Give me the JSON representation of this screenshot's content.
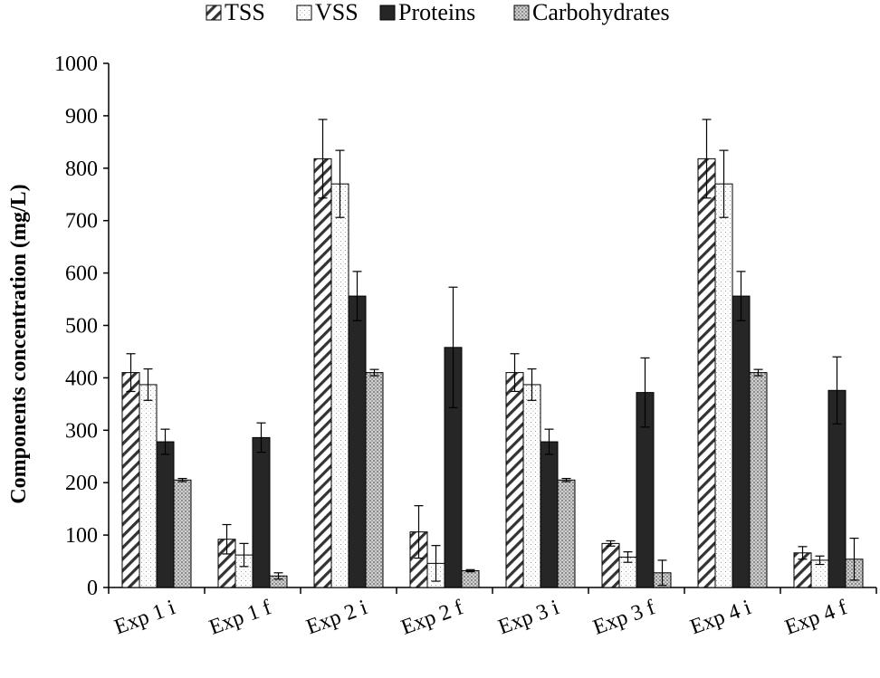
{
  "chart_data": {
    "type": "bar",
    "title": "",
    "xlabel": "",
    "ylabel": "Components concentration  (mg/L)",
    "ylim": [
      0,
      1000
    ],
    "yticks": [
      0,
      100,
      200,
      300,
      400,
      500,
      600,
      700,
      800,
      900,
      1000
    ],
    "grid": false,
    "legend_position": "top",
    "categories": [
      "Exp 1 i",
      "Exp 1 f",
      "Exp 2 i",
      "Exp 2 f",
      "Exp 3 i",
      "Exp 3 f",
      "Exp 4 i",
      "Exp 4 f"
    ],
    "series": [
      {
        "name": "TSS",
        "pattern": "diagonal-hatch",
        "values": [
          410,
          92,
          818,
          106,
          410,
          84,
          818,
          66
        ],
        "errors": [
          36,
          28,
          75,
          50,
          36,
          5,
          75,
          12
        ]
      },
      {
        "name": "VSS",
        "pattern": "light-dots",
        "values": [
          387,
          62,
          770,
          46,
          387,
          58,
          770,
          52
        ],
        "errors": [
          30,
          22,
          64,
          34,
          30,
          10,
          64,
          8
        ]
      },
      {
        "name": "Proteins",
        "pattern": "solid-dark",
        "values": [
          278,
          286,
          556,
          458,
          278,
          372,
          556,
          376
        ],
        "errors": [
          24,
          28,
          47,
          115,
          24,
          66,
          47,
          64
        ]
      },
      {
        "name": "Carbohydrates",
        "pattern": "dense-grey-dots",
        "values": [
          205,
          22,
          410,
          32,
          205,
          28,
          410,
          54
        ],
        "errors": [
          3,
          6,
          6,
          2,
          3,
          24,
          6,
          40
        ]
      }
    ]
  }
}
